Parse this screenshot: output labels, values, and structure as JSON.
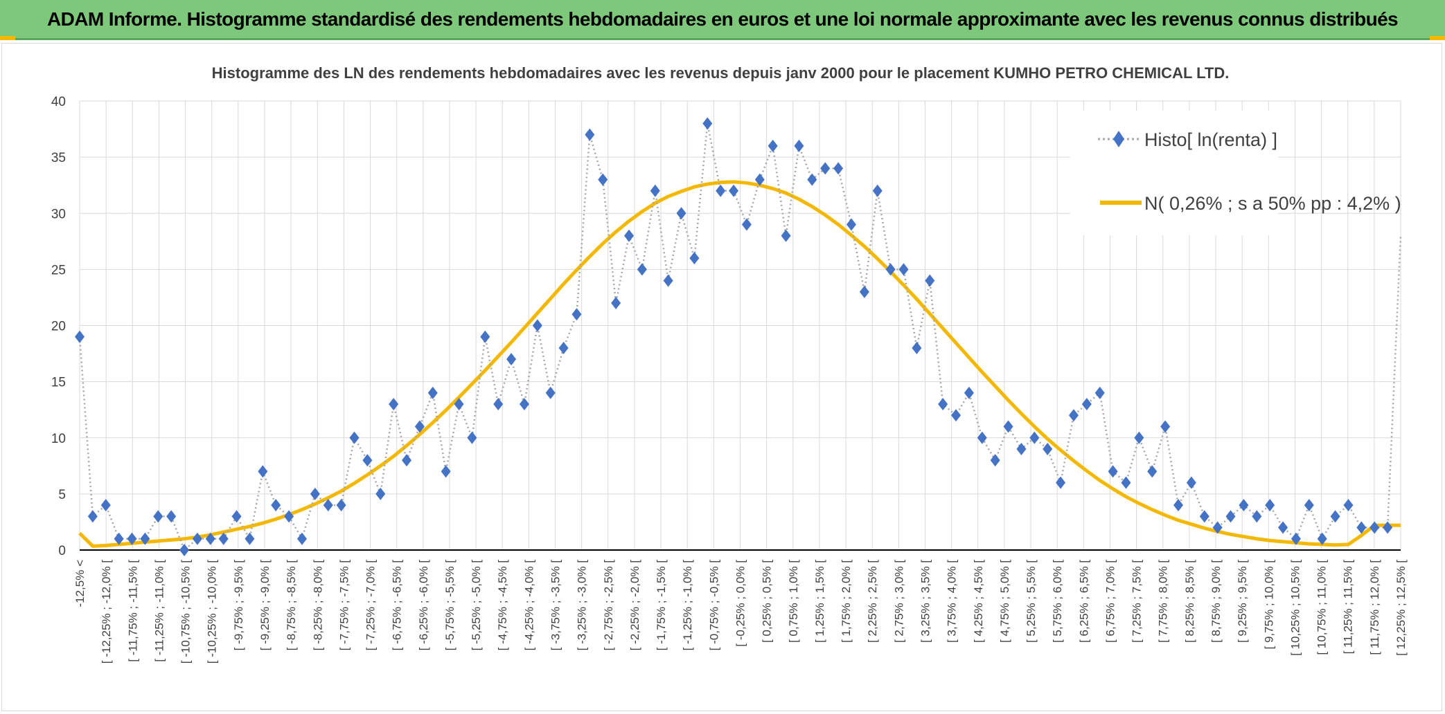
{
  "header": {
    "title": "ADAM Informe. Histogramme standardisé des rendements hebdomadaires en euros et une loi normale approximante avec les revenus connus distribués"
  },
  "chart_data": {
    "type": "line",
    "title": "Histogramme des LN des rendements hebdomadaires avec les revenus depuis janv 2000 pour le placement KUMHO PETRO CHEMICAL LTD.",
    "xlabel": "",
    "ylabel": "",
    "ylim": [
      0,
      40
    ],
    "yticks": [
      0,
      5,
      10,
      15,
      20,
      25,
      30,
      35,
      40
    ],
    "grid": true,
    "legend_position": "top-right",
    "categories": [
      "-12,5% <",
      "[ -12,25% ; -12,0% [",
      "[ -11,75% ; -11,5% [",
      "[ -11,25% ; -11,0% [",
      "[ -10,75% ; -10,5% [",
      "[ -10,25% ; -10,0% [",
      "[ -9,75% ; -9,5% [",
      "[ -9,25% ; -9,0% [",
      "[ -8,75% ; -8,5% [",
      "[ -8,25% ; -8,0% [",
      "[ -7,75% ; -7,5% [",
      "[ -7,25% ; -7,0% [",
      "[ -6,75% ; -6,5% [",
      "[ -6,25% ; -6,0% [",
      "[ -5,75% ; -5,5% [",
      "[ -5,25% ; -5,0% [",
      "[ -4,75% ; -4,5% [",
      "[ -4,25% ; -4,0% [",
      "[ -3,75% ; -3,5% [",
      "[ -3,25% ; -3,0% [",
      "[ -2,75% ; -2,5% [",
      "[ -2,25% ; -2,0% [",
      "[ -1,75% ; -1,5% [",
      "[ -1,25% ; -1,0% [",
      "[ -0,75% ; -0,5% [",
      "[ -0,25% ; 0,0% [",
      "[ 0,25% ; 0,5% [",
      "[ 0,75% ; 1,0% [",
      "[ 1,25% ; 1,5% [",
      "[ 1,75% ; 2,0% [",
      "[ 2,25% ; 2,5% [",
      "[ 2,75% ; 3,0% [",
      "[ 3,25% ; 3,5% [",
      "[ 3,75% ; 4,0% [",
      "[ 4,25% ; 4,5% [",
      "[ 4,75% ; 5,0% [",
      "[ 5,25% ; 5,5% [",
      "[ 5,75% ; 6,0% [",
      "[ 6,25% ; 6,5% [",
      "[ 6,75% ; 7,0% [",
      "[ 7,25% ; 7,5% [",
      "[ 7,75% ; 8,0% [",
      "[ 8,25% ; 8,5% [",
      "[ 8,75% ; 9,0% [",
      "[ 9,25% ; 9,5% [",
      "[ 9,75% ; 10,0% [",
      "[ 10,25% ; 10,5% [",
      "[ 10,75% ; 11,0% [",
      "[ 11,25% ; 11,5% [",
      "[ 11,75% ; 12,0% [",
      "[ 12,25% ; 12,5% ["
    ],
    "series": [
      {
        "name": "Histo[ ln(renta) ]",
        "style": "dotted line with diamond markers",
        "color": "#4472c4",
        "line_color": "#a6a6a6",
        "x": [
          0,
          1,
          2,
          3,
          4,
          5,
          6,
          7,
          8,
          9,
          10,
          11,
          12,
          13,
          14,
          15,
          16,
          17,
          18,
          19,
          20,
          21,
          22,
          23,
          24,
          25,
          26,
          27,
          28,
          29,
          30,
          31,
          32,
          33,
          34,
          35,
          36,
          37,
          38,
          39,
          40,
          41,
          42,
          43,
          44,
          45,
          46,
          47,
          48,
          49,
          50,
          51,
          52,
          53,
          54,
          55,
          56,
          57,
          58,
          59,
          60,
          61,
          62,
          63,
          64,
          65,
          66,
          67,
          68,
          69,
          70,
          71,
          72,
          73,
          74,
          75,
          76,
          77,
          78,
          79,
          80,
          81,
          82,
          83,
          84,
          85,
          86,
          87,
          88,
          89,
          90,
          91,
          92,
          93,
          94,
          95,
          96,
          97,
          98,
          99,
          100,
          101
        ],
        "values": [
          19,
          3,
          4,
          1,
          1,
          1,
          3,
          3,
          0,
          1,
          1,
          1,
          3,
          1,
          7,
          4,
          3,
          1,
          5,
          4,
          4,
          10,
          8,
          5,
          13,
          8,
          11,
          14,
          7,
          13,
          10,
          19,
          13,
          17,
          13,
          20,
          14,
          18,
          21,
          37,
          33,
          22,
          28,
          25,
          32,
          24,
          30,
          26,
          38,
          32,
          32,
          29,
          33,
          36,
          28,
          36,
          33,
          34,
          34,
          29,
          23,
          32,
          25,
          25,
          18,
          24,
          13,
          12,
          14,
          10,
          8,
          11,
          9,
          10,
          9,
          6,
          12,
          13,
          14,
          7,
          6,
          10,
          7,
          11,
          4,
          6,
          3,
          2,
          3,
          4,
          3,
          4,
          2,
          1,
          4,
          1,
          3,
          4,
          2,
          2,
          2,
          28
        ]
      },
      {
        "name": "N( 0,26% ; s a 50% pp : 4,2% )",
        "style": "solid line",
        "color": "#f5b800",
        "x": [
          0,
          1,
          2,
          3,
          4,
          5,
          6,
          7,
          8,
          9,
          10,
          11,
          12,
          13,
          14,
          15,
          16,
          17,
          18,
          19,
          20,
          21,
          22,
          23,
          24,
          25,
          26,
          27,
          28,
          29,
          30,
          31,
          32,
          33,
          34,
          35,
          36,
          37,
          38,
          39,
          40,
          41,
          42,
          43,
          44,
          45,
          46,
          47,
          48,
          49,
          50,
          51,
          52,
          53,
          54,
          55,
          56,
          57,
          58,
          59,
          60,
          61,
          62,
          63,
          64,
          65,
          66,
          67,
          68,
          69,
          70,
          71,
          72,
          73,
          74,
          75,
          76,
          77,
          78,
          79,
          80,
          81,
          82,
          83,
          84,
          85,
          86,
          87,
          88,
          89,
          90,
          91,
          92,
          93,
          94,
          95,
          96,
          97,
          98,
          99,
          100,
          101
        ],
        "values": [
          1.5,
          0.35,
          0.4,
          0.5,
          0.6,
          0.7,
          0.8,
          0.9,
          1.0,
          1.15,
          1.35,
          1.6,
          1.85,
          2.1,
          2.4,
          2.75,
          3.15,
          3.6,
          4.1,
          4.65,
          5.25,
          5.95,
          6.7,
          7.5,
          8.35,
          9.3,
          10.3,
          11.35,
          12.45,
          13.6,
          14.8,
          16.0,
          17.25,
          18.5,
          19.8,
          21.1,
          22.4,
          23.7,
          24.95,
          26.15,
          27.3,
          28.35,
          29.3,
          30.15,
          30.9,
          31.5,
          31.95,
          32.35,
          32.6,
          32.75,
          32.8,
          32.7,
          32.5,
          32.2,
          31.8,
          31.25,
          30.6,
          29.85,
          29.0,
          28.05,
          27.05,
          25.95,
          24.8,
          23.6,
          22.35,
          21.05,
          19.75,
          18.45,
          17.15,
          15.85,
          14.6,
          13.35,
          12.15,
          11.0,
          9.9,
          8.9,
          7.95,
          7.05,
          6.2,
          5.45,
          4.75,
          4.15,
          3.6,
          3.1,
          2.65,
          2.3,
          1.95,
          1.65,
          1.4,
          1.2,
          1.0,
          0.85,
          0.75,
          0.65,
          0.55,
          0.5,
          0.45,
          0.5,
          1.3,
          2.2,
          2.2,
          2.2
        ]
      }
    ]
  }
}
